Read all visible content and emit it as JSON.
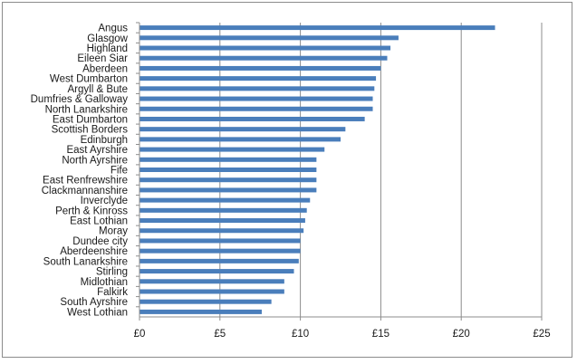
{
  "chart_data": {
    "type": "bar",
    "orientation": "horizontal",
    "title": "",
    "xlabel": "",
    "ylabel": "",
    "categories": [
      "Angus",
      "Glasgow",
      "Highland",
      "Eileen Siar",
      "Aberdeen",
      "West Dumbarton",
      "Argyll & Bute",
      "Dumfries & Galloway",
      "North Lanarkshire",
      "East Dumbarton",
      "Scottish Borders",
      "Edinburgh",
      "East Ayrshire",
      "North Ayrshire",
      "Fife",
      "East Renfrewshire",
      "Clackmannanshire",
      "Inverclyde",
      "Perth & Kinross",
      "East Lothian",
      "Moray",
      "Dundee city",
      "Aberdeenshire",
      "South Lanarkshire",
      "Stirling",
      "Midlothian",
      "Falkirk",
      "South Ayrshire",
      "West Lothian"
    ],
    "values": [
      22.1,
      16.1,
      15.6,
      15.4,
      15.0,
      14.7,
      14.6,
      14.5,
      14.5,
      14.0,
      12.8,
      12.5,
      11.5,
      11.0,
      11.0,
      11.0,
      11.0,
      10.6,
      10.4,
      10.3,
      10.2,
      10.0,
      10.0,
      9.9,
      9.6,
      9.0,
      9.0,
      8.2,
      7.6
    ],
    "xlim": [
      0,
      25
    ],
    "xticks": [
      "£0",
      "£5",
      "£10",
      "£15",
      "£20",
      "£25"
    ],
    "xtick_values": [
      0,
      5,
      10,
      15,
      20,
      25
    ],
    "grid": "vertical",
    "bar_color": "#4a7ebb"
  }
}
